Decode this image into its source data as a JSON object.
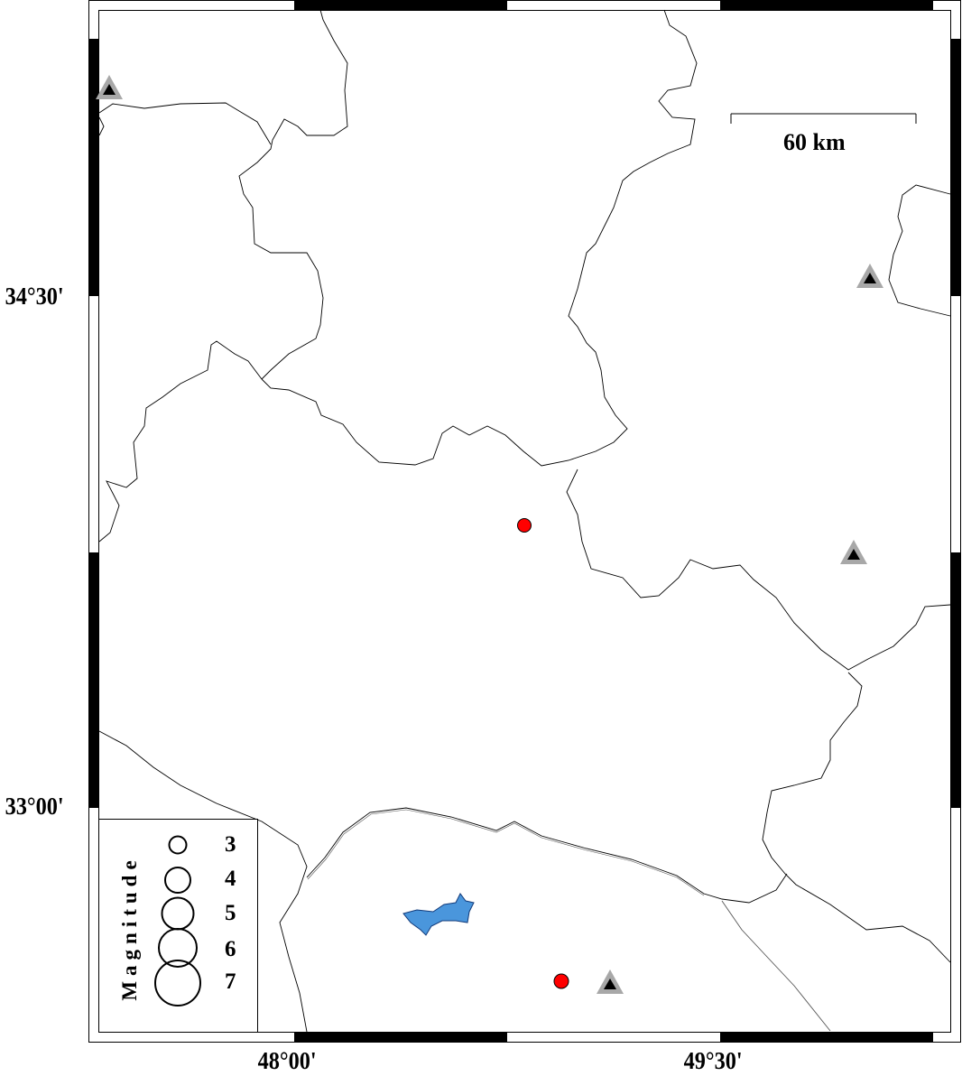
{
  "map": {
    "axis_labels": {
      "left": [
        "34°30'",
        "33°00'"
      ],
      "bottom": [
        "48°00'",
        "49°30'"
      ]
    },
    "scale_bar": {
      "label": "60 km"
    },
    "legend": {
      "title": "Magnitude",
      "magnitudes": [
        "3",
        "4",
        "5",
        "6",
        "7"
      ]
    },
    "stations": [
      {
        "symbol": "triangle-icon"
      },
      {
        "symbol": "triangle-icon"
      },
      {
        "symbol": "triangle-icon"
      },
      {
        "symbol": "triangle-icon"
      }
    ],
    "events": [
      {
        "symbol": "circle",
        "color": "#ff0000"
      },
      {
        "symbol": "circle",
        "color": "#ff0000"
      }
    ],
    "colors": {
      "station_outer": "#a8a8a8",
      "station_inner": "#000000",
      "event": "#ff0000",
      "lake": "#4a96dc",
      "border": "#000000"
    }
  }
}
